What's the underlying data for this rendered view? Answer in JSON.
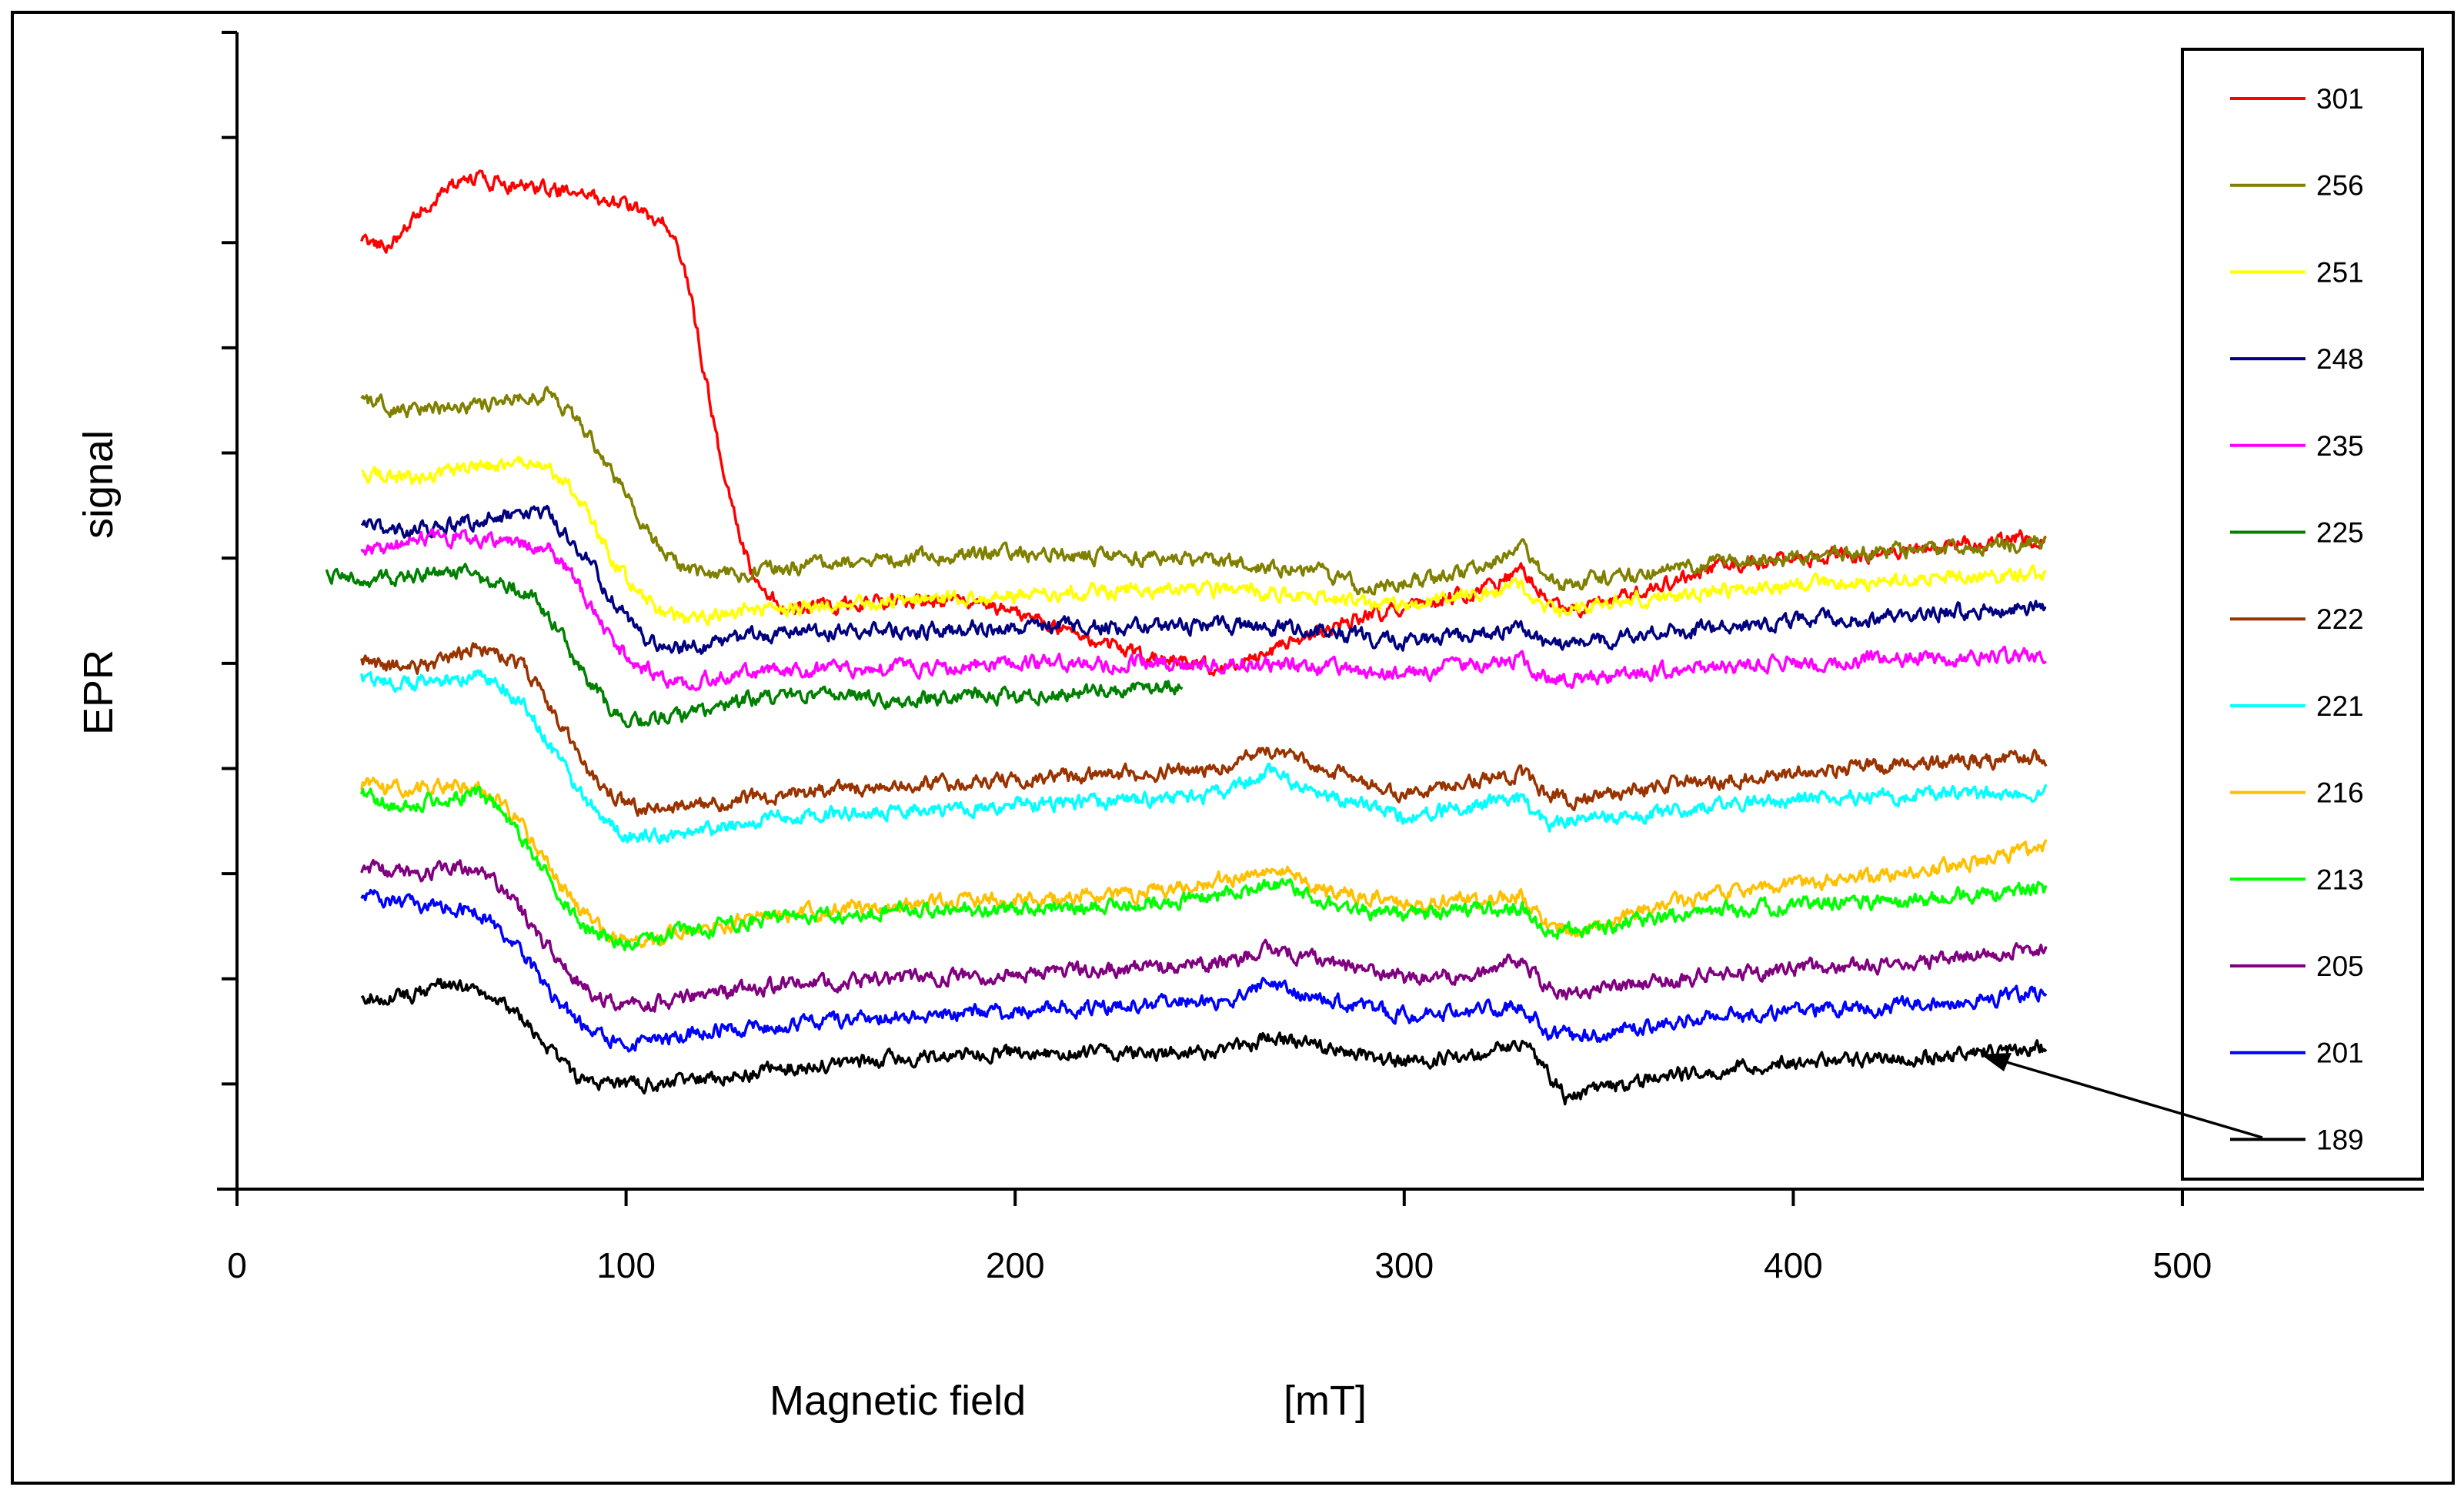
{
  "chart_data": {
    "type": "line",
    "title": "",
    "xlabel": "Magnetic field",
    "xlabel_unit": "[mT]",
    "ylabel": "EPR",
    "ylabel_word2": "signal",
    "xlim": [
      0,
      500
    ],
    "xticks": [
      0,
      100,
      200,
      300,
      400,
      500
    ],
    "xticks_labels": [
      "0",
      "100",
      "200",
      "300",
      "400",
      "500"
    ],
    "ylim": [
      -1,
      10
    ],
    "y_tick_count": 11,
    "ytick_labels_shown": false,
    "grid": false,
    "legend_position": "right",
    "annotation": "arrow from legend entry 189 to its curve",
    "series": [
      {
        "name": "301",
        "color": "#ff0000",
        "x": [
          32,
          40,
          47,
          53,
          62,
          72,
          80,
          90,
          100,
          110,
          115,
          118,
          121,
          124,
          127,
          130,
          133,
          136,
          140,
          146,
          155,
          170,
          185,
          200,
          210,
          220,
          235,
          250,
          262,
          275,
          290,
          305,
          320,
          330,
          337,
          345,
          360,
          380,
          400,
          420,
          440,
          457,
          465
        ],
        "y": [
          8.0,
          8.0,
          8.3,
          8.5,
          8.6,
          8.55,
          8.5,
          8.45,
          8.35,
          8.2,
          7.8,
          7.2,
          6.6,
          6.0,
          5.5,
          5.1,
          4.8,
          4.65,
          4.55,
          4.5,
          4.55,
          4.6,
          4.6,
          4.5,
          4.35,
          4.2,
          4.05,
          3.95,
          4.05,
          4.25,
          4.45,
          4.55,
          4.7,
          4.9,
          4.6,
          4.5,
          4.7,
          4.9,
          5.0,
          5.05,
          5.1,
          5.2,
          5.15
        ]
      },
      {
        "name": "256",
        "color": "#808000",
        "x": [
          32,
          45,
          60,
          70,
          80,
          85,
          90,
          95,
          100,
          105,
          110,
          115,
          120,
          130,
          140,
          150,
          170,
          200,
          230,
          260,
          280,
          290,
          300,
          315,
          325,
          330,
          335,
          340,
          350,
          360,
          380,
          400,
          420,
          440,
          465
        ],
        "y": [
          6.5,
          6.4,
          6.45,
          6.5,
          6.55,
          6.4,
          6.2,
          5.9,
          5.6,
          5.3,
          5.05,
          4.9,
          4.85,
          4.85,
          4.9,
          4.95,
          5.0,
          5.05,
          5.0,
          4.95,
          4.85,
          4.7,
          4.75,
          4.85,
          5.0,
          5.1,
          4.9,
          4.75,
          4.8,
          4.85,
          4.95,
          5.0,
          5.05,
          5.1,
          5.15
        ]
      },
      {
        "name": "251",
        "color": "#ffff00",
        "x": [
          32,
          45,
          60,
          70,
          80,
          85,
          90,
          95,
          100,
          105,
          110,
          115,
          120,
          130,
          150,
          170,
          200,
          230,
          260,
          280,
          300,
          320,
          330,
          335,
          340,
          350,
          370,
          400,
          430,
          465
        ],
        "y": [
          5.8,
          5.75,
          5.85,
          5.9,
          5.85,
          5.7,
          5.45,
          5.1,
          4.8,
          4.6,
          4.45,
          4.4,
          4.45,
          4.5,
          4.55,
          4.6,
          4.65,
          4.7,
          4.7,
          4.6,
          4.55,
          4.65,
          4.75,
          4.55,
          4.5,
          4.55,
          4.65,
          4.75,
          4.8,
          4.85
        ]
      },
      {
        "name": "248",
        "color": "#000080",
        "x": [
          32,
          45,
          60,
          70,
          80,
          85,
          90,
          95,
          100,
          105,
          110,
          120,
          130,
          150,
          170,
          200,
          230,
          260,
          280,
          300,
          320,
          330,
          337,
          345,
          370,
          400,
          430,
          465
        ],
        "y": [
          5.3,
          5.25,
          5.35,
          5.4,
          5.4,
          5.2,
          5.0,
          4.7,
          4.45,
          4.2,
          4.15,
          4.15,
          4.25,
          4.3,
          4.3,
          4.35,
          4.35,
          4.35,
          4.3,
          4.2,
          4.3,
          4.35,
          4.15,
          4.2,
          4.3,
          4.4,
          4.45,
          4.55
        ]
      },
      {
        "name": "235",
        "color": "#ff00ff",
        "x": [
          32,
          40,
          50,
          60,
          70,
          80,
          85,
          90,
          95,
          100,
          105,
          110,
          115,
          120,
          130,
          150,
          170,
          200,
          230,
          260,
          280,
          300,
          320,
          330,
          337,
          345,
          370,
          400,
          430,
          465
        ],
        "y": [
          5.05,
          5.1,
          5.2,
          5.2,
          5.15,
          5.1,
          4.9,
          4.6,
          4.3,
          4.05,
          3.95,
          3.85,
          3.8,
          3.85,
          3.9,
          3.95,
          3.95,
          4.0,
          4.0,
          4.0,
          3.95,
          3.9,
          4.0,
          4.05,
          3.85,
          3.85,
          3.95,
          4.0,
          4.05,
          4.05
        ]
      },
      {
        "name": "225",
        "color": "#008000",
        "x": [
          23,
          35,
          50,
          60,
          70,
          75,
          80,
          85,
          90,
          95,
          100,
          110,
          120,
          130,
          150,
          170,
          190,
          210,
          230,
          243
        ],
        "y": [
          4.85,
          4.8,
          4.85,
          4.85,
          4.75,
          4.65,
          4.45,
          4.15,
          3.85,
          3.6,
          3.45,
          3.45,
          3.55,
          3.65,
          3.7,
          3.65,
          3.7,
          3.7,
          3.75,
          3.8
        ]
      },
      {
        "name": "222",
        "color": "#993300",
        "x": [
          32,
          45,
          55,
          62,
          70,
          75,
          80,
          85,
          90,
          95,
          100,
          110,
          120,
          140,
          170,
          200,
          230,
          250,
          265,
          280,
          300,
          320,
          330,
          337,
          345,
          370,
          400,
          430,
          465
        ],
        "y": [
          4.0,
          3.95,
          4.05,
          4.15,
          4.05,
          3.9,
          3.6,
          3.3,
          3.0,
          2.8,
          2.65,
          2.6,
          2.65,
          2.75,
          2.85,
          2.9,
          2.95,
          3.0,
          3.15,
          3.0,
          2.75,
          2.9,
          2.95,
          2.75,
          2.7,
          2.85,
          2.95,
          3.05,
          3.1
        ]
      },
      {
        "name": "221",
        "color": "#00ffff",
        "x": [
          32,
          45,
          55,
          62,
          70,
          75,
          80,
          85,
          90,
          95,
          100,
          110,
          120,
          140,
          170,
          200,
          230,
          250,
          265,
          280,
          300,
          320,
          330,
          337,
          345,
          370,
          400,
          430,
          465
        ],
        "y": [
          3.85,
          3.8,
          3.85,
          3.9,
          3.75,
          3.55,
          3.25,
          2.95,
          2.7,
          2.5,
          2.35,
          2.35,
          2.4,
          2.55,
          2.6,
          2.65,
          2.7,
          2.75,
          2.95,
          2.75,
          2.55,
          2.65,
          2.7,
          2.45,
          2.5,
          2.6,
          2.7,
          2.75,
          2.75
        ]
      },
      {
        "name": "216",
        "color": "#ffc000",
        "x": [
          32,
          45,
          55,
          62,
          67,
          72,
          77,
          82,
          87,
          92,
          97,
          105,
          115,
          130,
          150,
          170,
          200,
          230,
          255,
          268,
          280,
          300,
          320,
          330,
          337,
          345,
          360,
          380,
          400,
          430,
          465
        ],
        "y": [
          2.85,
          2.8,
          2.85,
          2.85,
          2.7,
          2.5,
          2.25,
          1.95,
          1.7,
          1.5,
          1.4,
          1.35,
          1.45,
          1.55,
          1.65,
          1.7,
          1.75,
          1.8,
          1.95,
          2.05,
          1.85,
          1.7,
          1.75,
          1.8,
          1.5,
          1.45,
          1.65,
          1.8,
          1.9,
          2.0,
          2.25
        ]
      },
      {
        "name": "213",
        "color": "#00ff00",
        "x": [
          32,
          40,
          50,
          62,
          67,
          72,
          77,
          82,
          87,
          92,
          97,
          105,
          115,
          130,
          150,
          170,
          200,
          230,
          255,
          268,
          280,
          300,
          320,
          330,
          337,
          345,
          360,
          380,
          400,
          430,
          465
        ],
        "y": [
          2.8,
          2.65,
          2.7,
          2.75,
          2.6,
          2.4,
          2.15,
          1.85,
          1.6,
          1.45,
          1.35,
          1.35,
          1.45,
          1.55,
          1.6,
          1.65,
          1.65,
          1.7,
          1.8,
          1.9,
          1.7,
          1.6,
          1.65,
          1.7,
          1.45,
          1.45,
          1.55,
          1.65,
          1.7,
          1.75,
          1.85
        ]
      },
      {
        "name": "205",
        "color": "#800080",
        "x": [
          32,
          45,
          55,
          62,
          67,
          72,
          77,
          82,
          87,
          92,
          97,
          105,
          120,
          140,
          170,
          200,
          230,
          255,
          265,
          280,
          300,
          320,
          330,
          337,
          345,
          370,
          400,
          430,
          465
        ],
        "y": [
          2.05,
          2.0,
          2.05,
          2.05,
          1.9,
          1.7,
          1.45,
          1.2,
          1.0,
          0.85,
          0.75,
          0.75,
          0.85,
          0.95,
          1.0,
          1.05,
          1.1,
          1.15,
          1.3,
          1.15,
          1.0,
          1.05,
          1.2,
          0.9,
          0.85,
          1.0,
          1.1,
          1.15,
          1.3
        ]
      },
      {
        "name": "201",
        "color": "#0000ff",
        "x": [
          32,
          40,
          50,
          62,
          67,
          72,
          77,
          82,
          87,
          92,
          97,
          105,
          120,
          140,
          170,
          200,
          230,
          255,
          265,
          280,
          300,
          320,
          330,
          337,
          345,
          370,
          400,
          430,
          465
        ],
        "y": [
          1.8,
          1.75,
          1.7,
          1.65,
          1.5,
          1.3,
          1.05,
          0.8,
          0.6,
          0.45,
          0.4,
          0.4,
          0.5,
          0.55,
          0.65,
          0.7,
          0.75,
          0.8,
          0.95,
          0.8,
          0.65,
          0.7,
          0.75,
          0.5,
          0.45,
          0.6,
          0.7,
          0.75,
          0.85
        ]
      },
      {
        "name": "189",
        "color": "#000000",
        "x": [
          32,
          45,
          55,
          62,
          67,
          72,
          77,
          82,
          87,
          92,
          97,
          105,
          120,
          140,
          170,
          200,
          230,
          255,
          265,
          280,
          300,
          320,
          330,
          337,
          342,
          350,
          370,
          400,
          430,
          465
        ],
        "y": [
          0.85,
          0.85,
          0.95,
          0.9,
          0.8,
          0.65,
          0.45,
          0.25,
          0.05,
          0.0,
          0.0,
          0.0,
          0.05,
          0.15,
          0.25,
          0.3,
          0.3,
          0.3,
          0.45,
          0.35,
          0.2,
          0.3,
          0.4,
          0.1,
          -0.15,
          -0.05,
          0.1,
          0.2,
          0.25,
          0.35
        ]
      }
    ]
  }
}
